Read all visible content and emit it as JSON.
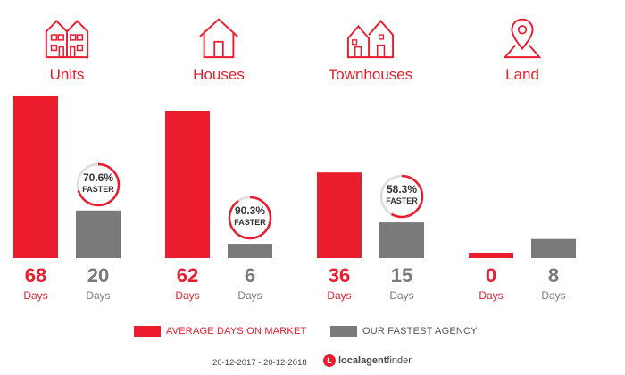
{
  "chart_data": {
    "type": "bar",
    "categories": [
      "Units",
      "Houses",
      "Townhouses",
      "Land"
    ],
    "series": [
      {
        "name": "AVERAGE DAYS ON MARKET",
        "values": [
          68,
          62,
          36,
          0
        ],
        "color": "#ea1c2e"
      },
      {
        "name": "OUR FASTEST AGENCY",
        "values": [
          20,
          6,
          15,
          8
        ],
        "color": "#7a7a7a"
      }
    ],
    "unit_label": "Days",
    "faster": [
      {
        "category": "Units",
        "percent_label": "70.6%",
        "percent": 70.6,
        "word": "FASTER"
      },
      {
        "category": "Houses",
        "percent_label": "90.3%",
        "percent": 90.3,
        "word": "FASTER"
      },
      {
        "category": "Townhouses",
        "percent_label": "58.3%",
        "percent": 58.3,
        "word": "FASTER"
      }
    ],
    "icons": [
      "units-icon",
      "house-icon",
      "townhouses-icon",
      "land-pin-icon"
    ],
    "grid": false,
    "legend_position": "bottom"
  },
  "footer": {
    "date_range": "20-12-2017 - 20-12-2018",
    "brand_mark": "L",
    "brand_bold": "localagent",
    "brand_light": "finder"
  },
  "colors": {
    "accent": "#ea1c2e",
    "grey": "#7a7a7a",
    "ring_track": "#dddddd"
  }
}
